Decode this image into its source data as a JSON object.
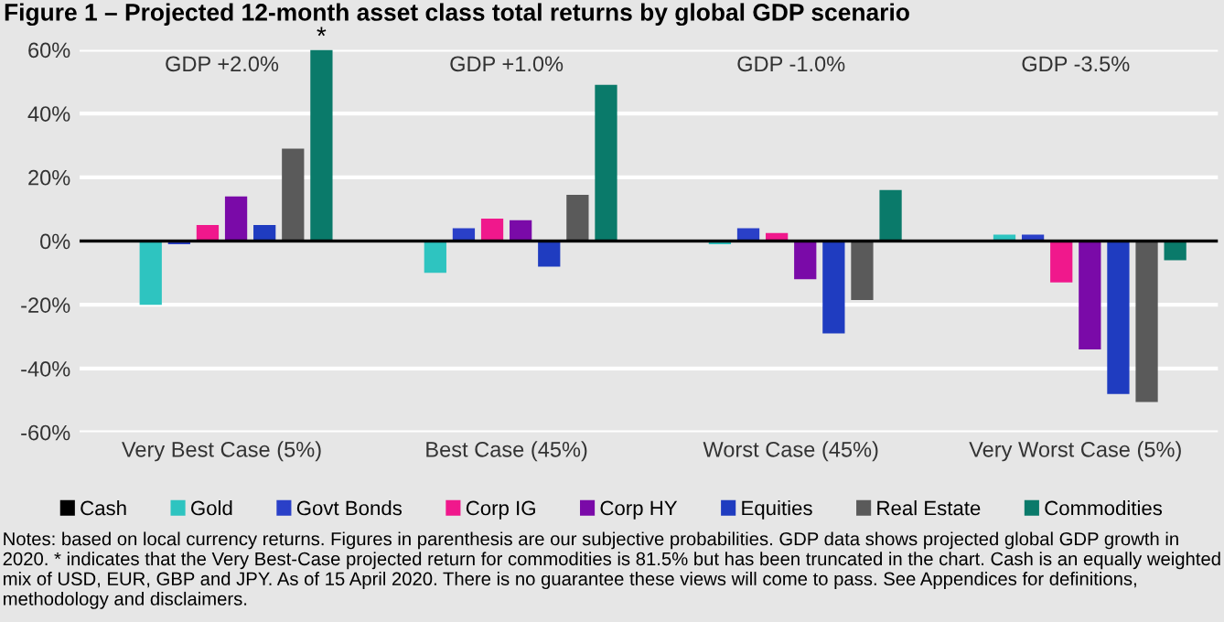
{
  "chart_data": {
    "type": "bar",
    "title": "Figure 1 – Projected 12-month asset class total returns by global GDP scenario",
    "categories": [
      "Very Best Case (5%)",
      "Best Case (45%)",
      "Worst Case (45%)",
      "Very Worst Case (5%)"
    ],
    "series": [
      {
        "name": "Cash",
        "color": "#000000",
        "values": [
          0,
          0,
          0,
          0
        ]
      },
      {
        "name": "Gold",
        "color": "#2ec4c0",
        "values": [
          -20,
          -10,
          -1,
          2
        ]
      },
      {
        "name": "Govt Bonds",
        "color": "#2a40c8",
        "values": [
          -1,
          4,
          4,
          2
        ]
      },
      {
        "name": "Corp IG",
        "color": "#f0188c",
        "values": [
          5,
          7,
          2.5,
          -13
        ]
      },
      {
        "name": "Corp HY",
        "color": "#7a0aa8",
        "values": [
          14,
          6.5,
          -12,
          -34
        ]
      },
      {
        "name": "Equities",
        "color": "#1f3cc0",
        "values": [
          5,
          -8,
          -29,
          -48
        ]
      },
      {
        "name": "Real Estate",
        "color": "#5a5a5a",
        "values": [
          29,
          14.5,
          -18.5,
          -50.5
        ]
      },
      {
        "name": "Commodities",
        "color": "#0a7a6a",
        "values": [
          60,
          49,
          16,
          -6
        ]
      }
    ],
    "ylim": [
      -60,
      60
    ],
    "yticks": [
      {
        "value": -60,
        "label": "-60%"
      },
      {
        "value": -40,
        "label": "-40%"
      },
      {
        "value": -20,
        "label": "-20%"
      },
      {
        "value": 0,
        "label": "0%"
      },
      {
        "value": 20,
        "label": "20%"
      },
      {
        "value": 40,
        "label": "40%"
      },
      {
        "value": 60,
        "label": "60%"
      }
    ],
    "grid": "y",
    "legend": "bottom",
    "annotations": [
      "GDP +2.0%",
      "GDP +1.0%",
      "GDP -1.0%",
      "GDP -3.5%",
      "*",
      "Notes: based on local currency returns. Figures in parenthesis are our subjective probabilities. GDP data shows projected global GDP growth in 2020. * indicates that the Very Best-Case projected return for commodities is 81.5% but has been truncated in the chart. Cash is an equally weighted mix of USD, EUR, GBP and JPY. As of 15 April 2020. There is no guarantee these views will come to pass. See Appendices for definitions, methodology and disclaimers."
    ]
  }
}
